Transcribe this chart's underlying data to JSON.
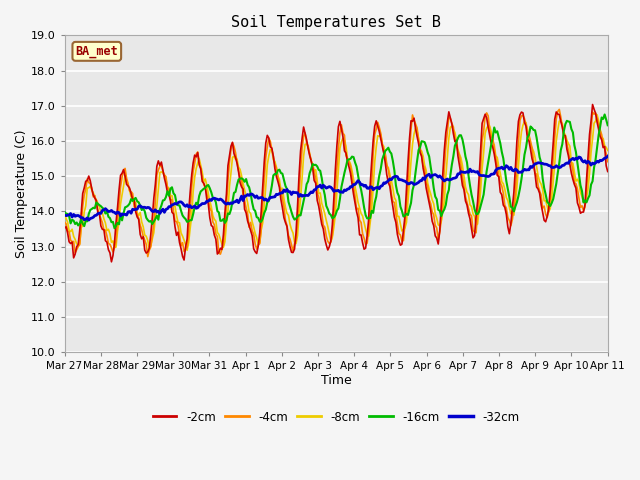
{
  "title": "Soil Temperatures Set B",
  "xlabel": "Time",
  "ylabel": "Soil Temperature (C)",
  "ylim": [
    10.0,
    19.0
  ],
  "yticks": [
    10.0,
    11.0,
    12.0,
    13.0,
    14.0,
    15.0,
    16.0,
    17.0,
    18.0,
    19.0
  ],
  "xtick_labels": [
    "Mar 27",
    "Mar 28",
    "Mar 29",
    "Mar 30",
    "Mar 31",
    "Apr 1",
    "Apr 2",
    "Apr 3",
    "Apr 4",
    "Apr 5",
    "Apr 6",
    "Apr 7",
    "Apr 8",
    "Apr 9",
    "Apr 10",
    "Apr 11"
  ],
  "station_label": "BA_met",
  "line_colors": [
    "#cc0000",
    "#ff8800",
    "#eecc00",
    "#00bb00",
    "#0000cc"
  ],
  "line_labels": [
    "-2cm",
    "-4cm",
    "-8cm",
    "-16cm",
    "-32cm"
  ],
  "line_widths": [
    1.2,
    1.2,
    1.2,
    1.5,
    2.0
  ],
  "fig_bg_color": "#f5f5f5",
  "plot_bg_color": "#e8e8e8",
  "grid_color": "#ffffff"
}
